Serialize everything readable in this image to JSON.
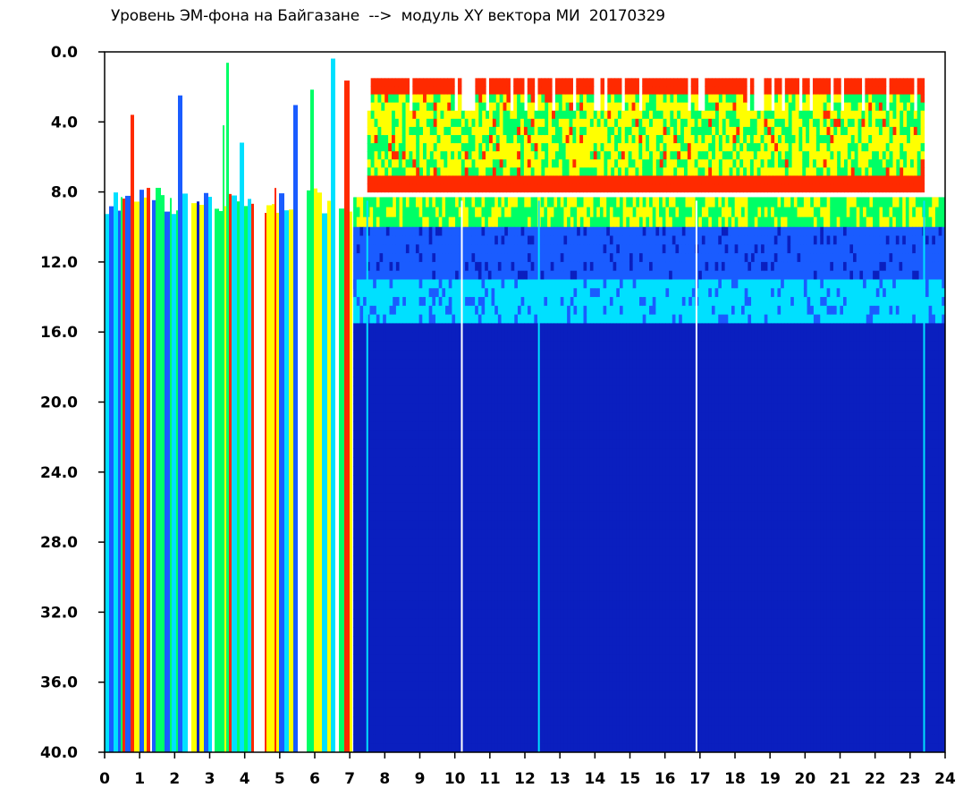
{
  "chart_data": {
    "type": "heatmap",
    "title": "Уровень ЭМ-фона на Байгазане  -->  модуль XY вектора МИ  20170329",
    "x_ticks": [
      "0",
      "1",
      "2",
      "3",
      "4",
      "5",
      "6",
      "7",
      "8",
      "9",
      "10",
      "11",
      "12",
      "13",
      "14",
      "15",
      "16",
      "17",
      "18",
      "19",
      "20",
      "21",
      "22",
      "23",
      "24"
    ],
    "y_ticks": [
      "0.0",
      "4.0",
      "8.0",
      "12.0",
      "16.0",
      "20.0",
      "24.0",
      "28.0",
      "32.0",
      "36.0",
      "40.0"
    ],
    "xlim": [
      0,
      24
    ],
    "ylim": [
      0,
      40
    ],
    "y_inverted": true,
    "colormap": [
      "#0a1fbf",
      "#1a5cff",
      "#00e0ff",
      "#00ff66",
      "#ffff00",
      "#ff2a00",
      "#ffffff"
    ],
    "background_color": "#0b22c4",
    "sparse_color": "#ffffff",
    "bands": [
      {
        "x_range": [
          0,
          7.1
        ],
        "y_range": [
          8.5,
          40
        ],
        "pattern": "vertical-stripes",
        "intensity_low": 0.15,
        "intensity_high": 0.95
      },
      {
        "x_range": [
          7.1,
          24
        ],
        "y_range": [
          8.3,
          10
        ],
        "pattern": "band",
        "intensity_low": 0.55,
        "intensity_high": 0.75
      },
      {
        "x_range": [
          7.1,
          24
        ],
        "y_range": [
          10,
          13.5
        ],
        "pattern": "band",
        "intensity_low": 0.15,
        "intensity_high": 0.3
      },
      {
        "x_range": [
          7.1,
          24
        ],
        "y_range": [
          13,
          15.5
        ],
        "pattern": "band",
        "intensity_low": 0.3,
        "intensity_high": 0.5
      },
      {
        "x_range": [
          7.1,
          24
        ],
        "y_range": [
          15.5,
          40
        ],
        "pattern": "band",
        "intensity_low": 0.0,
        "intensity_high": 0.05
      },
      {
        "x_range": [
          7.5,
          23.4
        ],
        "y_range": [
          1.5,
          8.0
        ],
        "pattern": "cloud",
        "intensity_low": 0.55,
        "intensity_high": 0.85
      }
    ],
    "vertical_lines": [
      {
        "x": 7.5,
        "color": "#00e0ff"
      },
      {
        "x": 10.2,
        "color": "#ffffff"
      },
      {
        "x": 12.4,
        "color": "#00e0ff"
      },
      {
        "x": 16.9,
        "color": "#ffffff"
      },
      {
        "x": 23.4,
        "color": "#00e0ff"
      }
    ]
  }
}
